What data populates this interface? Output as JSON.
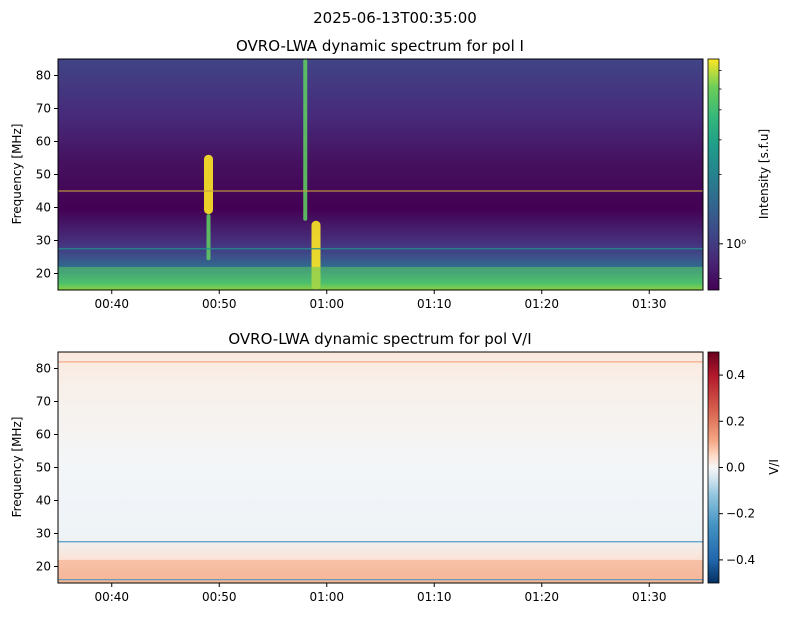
{
  "suptitle": "2025-06-13T00:35:00",
  "colors": {
    "viridis_low": "#440154",
    "viridis_mid": "#21918c",
    "viridis_high": "#fde725",
    "rdbu_neg": "#053061",
    "rdbu_zero": "#f7f7f7",
    "rdbu_pos": "#67001f",
    "hline": "#c8a040"
  },
  "chart_data": [
    {
      "type": "heatmap",
      "title": "OVRO-LWA dynamic spectrum for pol I",
      "xlabel": "",
      "ylabel": "Frequency [MHz]",
      "colorbar_label": "Intensity [s.f.u]",
      "colormap": "viridis",
      "color_scale": "log",
      "colorbar_ticks": [
        {
          "value": 1,
          "label": "10⁰"
        }
      ],
      "xlim": [
        "00:35",
        "01:35"
      ],
      "ylim": [
        15,
        85
      ],
      "x_ticks": [
        "00:40",
        "00:50",
        "01:00",
        "01:10",
        "01:20",
        "01:30"
      ],
      "y_ticks": [
        20,
        30,
        40,
        50,
        60,
        70,
        80
      ],
      "features": [
        {
          "kind": "burst",
          "t": "00:49",
          "f_range": [
            38,
            56
          ],
          "level": 1.0
        },
        {
          "kind": "burst",
          "t": "00:49",
          "f_range": [
            24,
            38
          ],
          "level": 0.6
        },
        {
          "kind": "burst",
          "t": "00:59",
          "f_range": [
            15,
            36
          ],
          "level": 1.0
        },
        {
          "kind": "burst",
          "t": "00:58",
          "f_range": [
            36,
            85
          ],
          "level": 0.55
        },
        {
          "kind": "band",
          "f_range": [
            15,
            22
          ],
          "level": 0.7
        },
        {
          "kind": "line",
          "f": 45,
          "level": 0.5
        },
        {
          "kind": "line",
          "f": 27.5,
          "level": 0.4
        }
      ]
    },
    {
      "type": "heatmap",
      "title": "OVRO-LWA dynamic spectrum for pol V/I",
      "xlabel": "",
      "ylabel": "Frequency [MHz]",
      "colorbar_label": "V/I",
      "colormap": "RdBu_r",
      "color_scale": "linear",
      "clim": [
        -0.5,
        0.5
      ],
      "colorbar_ticks": [
        {
          "value": 0.4,
          "label": "0.4"
        },
        {
          "value": 0.2,
          "label": "0.2"
        },
        {
          "value": 0.0,
          "label": "0.0"
        },
        {
          "value": -0.2,
          "label": "−0.2"
        },
        {
          "value": -0.4,
          "label": "−0.4"
        }
      ],
      "xlim": [
        "00:35",
        "01:35"
      ],
      "ylim": [
        15,
        85
      ],
      "x_ticks": [
        "00:40",
        "00:50",
        "01:00",
        "01:10",
        "01:20",
        "01:30"
      ],
      "y_ticks": [
        20,
        30,
        40,
        50,
        60,
        70,
        80
      ],
      "features": [
        {
          "kind": "band",
          "f_range": [
            15,
            22
          ],
          "value": 0.1
        },
        {
          "kind": "line",
          "f": 27.5,
          "value": -0.3
        },
        {
          "kind": "line",
          "f": 16,
          "value": -0.3
        },
        {
          "kind": "line",
          "f": 82,
          "value": 0.05
        }
      ]
    }
  ]
}
